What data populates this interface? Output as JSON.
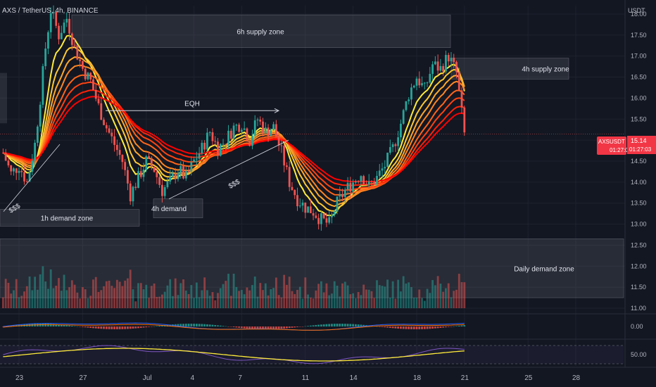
{
  "header": {
    "title": "AXS / TetherUS, 4h, BINANCE",
    "currency": "USDT"
  },
  "price_tag": {
    "symbol": "AXSUSDT",
    "price": "15.14",
    "countdown": "01:27:03",
    "color": "#f23645"
  },
  "chart_data": {
    "type": "candlestick",
    "title": "AXS / TetherUS, 4h, BINANCE",
    "xlabel": "",
    "ylabel": "USDT",
    "ylim": [
      11.0,
      18.2
    ],
    "y_ticks": [
      "18.00",
      "17.50",
      "17.00",
      "16.50",
      "16.00",
      "15.50",
      "15.00",
      "14.50",
      "14.00",
      "13.50",
      "13.00",
      "12.50",
      "12.00",
      "11.50",
      "11.00"
    ],
    "x_ticks": [
      "23",
      "27",
      "Jul",
      "4",
      "7",
      "11",
      "14",
      "18",
      "21",
      "25",
      "28"
    ],
    "price_path": [
      [
        "22 Jun 00:00",
        14.7
      ],
      [
        "22 Jun 12:00",
        14.2
      ],
      [
        "23 Jun 00:00",
        14.4
      ],
      [
        "23 Jun 12:00",
        14.0
      ],
      [
        "24 Jun 00:00",
        14.9
      ],
      [
        "24 Jun 08:00",
        16.0
      ],
      [
        "24 Jun 16:00",
        17.2
      ],
      [
        "25 Jun 00:00",
        18.1
      ],
      [
        "25 Jun 12:00",
        17.5
      ],
      [
        "26 Jun 00:00",
        17.9
      ],
      [
        "26 Jun 12:00",
        17.2
      ],
      [
        "27 Jun 00:00",
        16.7
      ],
      [
        "27 Jun 12:00",
        16.4
      ],
      [
        "28 Jun 00:00",
        15.8
      ],
      [
        "28 Jun 12:00",
        15.3
      ],
      [
        "29 Jun 00:00",
        14.9
      ],
      [
        "29 Jun 12:00",
        14.5
      ],
      [
        "30 Jun 00:00",
        13.7
      ],
      [
        "30 Jun 12:00",
        14.1
      ],
      [
        "1 Jul 00:00",
        14.5
      ],
      [
        "1 Jul 12:00",
        14.3
      ],
      [
        "2 Jul 00:00",
        13.8
      ],
      [
        "2 Jul 12:00",
        14.0
      ],
      [
        "3 Jul 00:00",
        14.3
      ],
      [
        "3 Jul 12:00",
        14.1
      ],
      [
        "4 Jul 00:00",
        14.5
      ],
      [
        "4 Jul 12:00",
        14.8
      ],
      [
        "5 Jul 00:00",
        15.2
      ],
      [
        "5 Jul 12:00",
        14.8
      ],
      [
        "6 Jul 00:00",
        15.0
      ],
      [
        "6 Jul 12:00",
        15.3
      ],
      [
        "7 Jul 00:00",
        15.4
      ],
      [
        "7 Jul 12:00",
        15.0
      ],
      [
        "8 Jul 00:00",
        15.5
      ],
      [
        "8 Jul 12:00",
        15.2
      ],
      [
        "9 Jul 00:00",
        15.3
      ],
      [
        "9 Jul 12:00",
        14.7
      ],
      [
        "10 Jul 00:00",
        14.0
      ],
      [
        "10 Jul 12:00",
        13.6
      ],
      [
        "11 Jul 00:00",
        13.4
      ],
      [
        "11 Jul 12:00",
        13.3
      ],
      [
        "12 Jul 00:00",
        13.1
      ],
      [
        "12 Jul 12:00",
        13.0
      ],
      [
        "13 Jul 00:00",
        13.5
      ],
      [
        "13 Jul 12:00",
        13.8
      ],
      [
        "14 Jul 00:00",
        14.0
      ],
      [
        "14 Jul 12:00",
        14.2
      ],
      [
        "15 Jul 00:00",
        13.9
      ],
      [
        "15 Jul 12:00",
        14.1
      ],
      [
        "16 Jul 00:00",
        14.4
      ],
      [
        "16 Jul 12:00",
        14.8
      ],
      [
        "17 Jul 00:00",
        15.4
      ],
      [
        "17 Jul 12:00",
        16.1
      ],
      [
        "18 Jul 00:00",
        16.5
      ],
      [
        "18 Jul 12:00",
        16.2
      ],
      [
        "19 Jul 00:00",
        16.8
      ],
      [
        "19 Jul 12:00",
        16.7
      ],
      [
        "20 Jul 00:00",
        17.0
      ],
      [
        "20 Jul 12:00",
        16.6
      ],
      [
        "21 Jul 00:00",
        15.14
      ]
    ],
    "zones": [
      {
        "label": "6h supply zone",
        "ymin": 17.2,
        "ymax": 17.98
      },
      {
        "label": "4h supply zone",
        "ymin": 16.45,
        "ymax": 16.95
      },
      {
        "label": "1h demand zone",
        "ymin": 12.95,
        "ymax": 13.35
      },
      {
        "label": "4h demand",
        "ymin": 13.15,
        "ymax": 13.6
      },
      {
        "label": "Daily demand zone",
        "ymin": 11.25,
        "ymax": 12.65
      }
    ],
    "annotations": [
      {
        "text": "EQH"
      },
      {
        "text": "$$$"
      },
      {
        "text": "$$$"
      }
    ],
    "oscillator_1": {
      "zero_label": "0.00"
    },
    "oscillator_2": {
      "level_label": "50.00"
    }
  },
  "colors": {
    "up": "#26a69a",
    "down": "#ef5350",
    "ribbon_fast": "#ffeb3b",
    "ribbon_slow": "#d50000",
    "background": "#131722"
  }
}
